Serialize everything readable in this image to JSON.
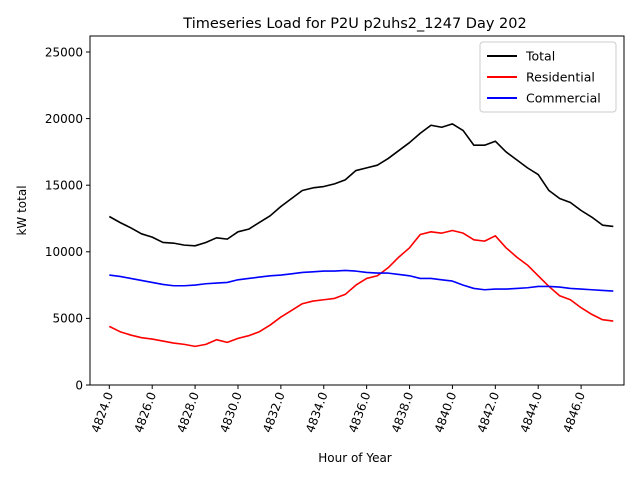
{
  "chart_data": {
    "type": "line",
    "title": "Timeseries Load for P2U p2uhs2_1247  Day 202",
    "xlabel": "Hour of Year",
    "ylabel": "kW total",
    "xlim": [
      4823.1,
      4848.0
    ],
    "ylim": [
      0,
      26200
    ],
    "xticks": [
      4824,
      4826,
      4828,
      4830,
      4832,
      4834,
      4836,
      4838,
      4840,
      4842,
      4844,
      4846
    ],
    "xtick_labels": [
      "4824.0",
      "4826.0",
      "4828.0",
      "4830.0",
      "4832.0",
      "4834.0",
      "4836.0",
      "4838.0",
      "4840.0",
      "4842.0",
      "4844.0",
      "4846.0"
    ],
    "yticks": [
      0,
      5000,
      10000,
      15000,
      20000,
      25000
    ],
    "ytick_labels": [
      "0",
      "5000",
      "10000",
      "15000",
      "20000",
      "25000"
    ],
    "grid": false,
    "legend_position": "top-right",
    "x": [
      4824.0,
      4824.5,
      4825.0,
      4825.5,
      4826.0,
      4826.5,
      4827.0,
      4827.5,
      4828.0,
      4828.5,
      4829.0,
      4829.5,
      4830.0,
      4830.5,
      4831.0,
      4831.5,
      4832.0,
      4832.5,
      4833.0,
      4833.5,
      4834.0,
      4834.5,
      4835.0,
      4835.5,
      4836.0,
      4836.5,
      4837.0,
      4837.5,
      4838.0,
      4838.5,
      4839.0,
      4839.5,
      4840.0,
      4840.5,
      4841.0,
      4841.5,
      4842.0,
      4842.5,
      4843.0,
      4843.5,
      4844.0,
      4844.5,
      4845.0,
      4845.5,
      4846.0,
      4846.5,
      4847.0,
      4847.5
    ],
    "series": [
      {
        "name": "Total",
        "color": "#000000",
        "values": [
          12650,
          12200,
          11800,
          11350,
          11100,
          10700,
          10650,
          10500,
          10450,
          10700,
          11050,
          10950,
          11500,
          11700,
          12200,
          12700,
          13400,
          14000,
          14600,
          14800,
          14900,
          15100,
          15400,
          16100,
          16300,
          16500,
          17000,
          17600,
          18200,
          18900,
          19500,
          19350,
          19600,
          19100,
          18000,
          18000,
          18300,
          17500,
          16900,
          16300,
          15800,
          14600,
          14000,
          13700,
          13100,
          12600,
          12000,
          11900
        ]
      },
      {
        "name": "Residential",
        "color": "#ff0000",
        "values": [
          4400,
          4000,
          3750,
          3550,
          3450,
          3300,
          3150,
          3050,
          2900,
          3050,
          3400,
          3200,
          3500,
          3700,
          4000,
          4500,
          5100,
          5600,
          6100,
          6300,
          6400,
          6500,
          6800,
          7500,
          8000,
          8200,
          8800,
          9600,
          10300,
          11300,
          11500,
          11400,
          11600,
          11400,
          10900,
          10800,
          11200,
          10300,
          9600,
          9000,
          8200,
          7400,
          6700,
          6400,
          5800,
          5300,
          4900,
          4800
        ]
      },
      {
        "name": "Commercial",
        "color": "#0000ff",
        "values": [
          8250,
          8150,
          8000,
          7850,
          7700,
          7550,
          7450,
          7450,
          7500,
          7600,
          7650,
          7700,
          7900,
          8000,
          8100,
          8200,
          8250,
          8350,
          8450,
          8500,
          8550,
          8550,
          8600,
          8550,
          8450,
          8400,
          8400,
          8300,
          8200,
          8000,
          8000,
          7900,
          7800,
          7500,
          7250,
          7150,
          7200,
          7200,
          7250,
          7300,
          7400,
          7400,
          7350,
          7250,
          7200,
          7150,
          7100,
          7050
        ]
      }
    ]
  }
}
